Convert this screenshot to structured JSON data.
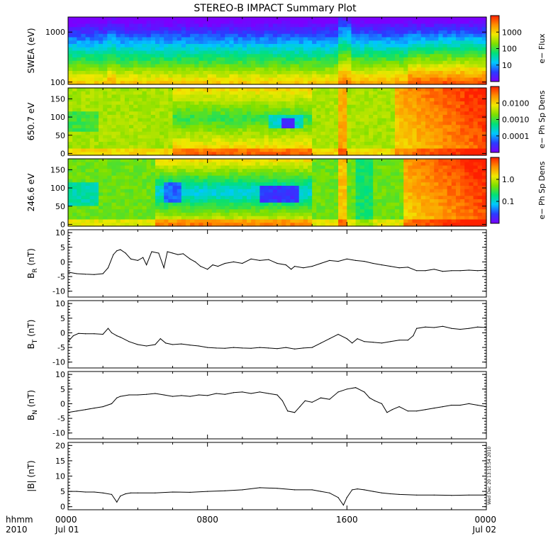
{
  "title": "STEREO-B IMPACT Summary Plot",
  "colormap": [
    "#7a00ff",
    "#2a3cff",
    "#00c8ff",
    "#00e07a",
    "#7ee000",
    "#f0e800",
    "#ff9000",
    "#ff2000"
  ],
  "x_axis": {
    "label_line1": "hhmm",
    "label_line2": "2010",
    "ticks": [
      {
        "time": "0000",
        "date": "Jul 01",
        "hour": 0
      },
      {
        "time": "0800",
        "date": "",
        "hour": 8
      },
      {
        "time": "1600",
        "date": "",
        "hour": 16
      },
      {
        "time": "0000",
        "date": "Jul 02",
        "hour": 24
      }
    ],
    "range_hours": [
      0,
      24
    ]
  },
  "side_label": "Wed Dec 20 13:15:54 2010",
  "chart_data": [
    {
      "type": "heatmap",
      "ylabel": "SWEA (eV)",
      "yscale": "log",
      "ylim": [
        90,
        2000
      ],
      "yticks": [
        "100",
        "1000"
      ],
      "ytick_values": [
        100,
        1000
      ],
      "colorbar": {
        "label": "e− Flux",
        "scale": "log",
        "ticks": [
          "10",
          "100",
          "1000"
        ]
      },
      "description_rows": {
        "low_energy_color_level_by_hour": [
          [
            0,
            0.75
          ],
          [
            2,
            0.72
          ],
          [
            3,
            0.6
          ],
          [
            8,
            0.62
          ],
          [
            14,
            0.65
          ],
          [
            15.5,
            0.8
          ],
          [
            16,
            0.7
          ],
          [
            19,
            0.82
          ],
          [
            20,
            0.95
          ],
          [
            24,
            0.95
          ]
        ]
      }
    },
    {
      "type": "heatmap",
      "ylabel": "650.7 eV",
      "ylim": [
        -5,
        180
      ],
      "yticks": [
        "0",
        "50",
        "100",
        "150"
      ],
      "ytick_values": [
        0,
        50,
        100,
        150
      ],
      "colorbar": {
        "label": "e− Ph Sp Dens",
        "scale": "log",
        "ticks": [
          "0.0001",
          "0.0010",
          "0.0100"
        ]
      }
    },
    {
      "type": "heatmap",
      "ylabel": "246.6 eV",
      "ylim": [
        -5,
        180
      ],
      "yticks": [
        "0",
        "50",
        "100",
        "150"
      ],
      "ytick_values": [
        0,
        50,
        100,
        150
      ],
      "colorbar": {
        "label": "e− Ph Sp Dens",
        "scale": "log",
        "ticks": [
          "0.1",
          "1.0"
        ]
      }
    },
    {
      "type": "line",
      "ylabel": "B",
      "ylabel_sub": "R",
      "ylabel_unit": "(nT)",
      "ylim": [
        -12,
        11
      ],
      "yticks": [
        "-10",
        "-5",
        "0",
        "5",
        "10"
      ],
      "ytick_values": [
        -10,
        -5,
        0,
        5,
        10
      ],
      "x": [
        0,
        0.5,
        1,
        1.5,
        2,
        2.3,
        2.6,
        2.8,
        3,
        3.3,
        3.6,
        4,
        4.3,
        4.5,
        4.8,
        5.2,
        5.5,
        5.7,
        6,
        6.3,
        6.6,
        7,
        7.3,
        7.6,
        8,
        8.3,
        8.6,
        9,
        9.5,
        10,
        10.5,
        11,
        11.5,
        12,
        12.5,
        12.8,
        13,
        13.5,
        14,
        14.5,
        15,
        15.5,
        16,
        16.5,
        17,
        17.5,
        18,
        18.5,
        19,
        19.5,
        20,
        20.5,
        21,
        21.5,
        22,
        22.5,
        23,
        23.5,
        24
      ],
      "values": [
        -3.5,
        -4,
        -4.2,
        -4.3,
        -4,
        -2,
        2.5,
        3.8,
        4.2,
        3,
        1,
        0.5,
        1.5,
        -1,
        3.5,
        3,
        -2,
        3.5,
        3,
        2.5,
        2.8,
        1,
        0,
        -1.5,
        -2.5,
        -1,
        -1.5,
        -0.5,
        0,
        -0.5,
        1,
        0.5,
        0.8,
        -0.5,
        -1,
        -2.5,
        -1.5,
        -2,
        -1.5,
        -0.5,
        0.5,
        0.2,
        1,
        0.5,
        0.2,
        -0.5,
        -1,
        -1.5,
        -2,
        -1.8,
        -3,
        -3,
        -2.5,
        -3.2,
        -3,
        -3,
        -2.8,
        -3,
        -2.8
      ]
    },
    {
      "type": "line",
      "ylabel": "B",
      "ylabel_sub": "T",
      "ylabel_unit": "(nT)",
      "ylim": [
        -12,
        11
      ],
      "yticks": [
        "-10",
        "-5",
        "0",
        "5",
        "10"
      ],
      "ytick_values": [
        -10,
        -5,
        0,
        5,
        10
      ],
      "x": [
        0,
        0.3,
        0.6,
        1,
        1.5,
        2,
        2.3,
        2.5,
        2.8,
        3,
        3.5,
        4,
        4.5,
        5,
        5.3,
        5.6,
        6,
        6.5,
        7,
        7.5,
        8,
        8.5,
        9,
        9.5,
        10,
        10.5,
        11,
        11.5,
        12,
        12.5,
        13,
        13.5,
        14,
        14.5,
        15,
        15.5,
        16,
        16.3,
        16.6,
        17,
        17.5,
        18,
        18.5,
        19,
        19.5,
        19.8,
        20,
        20.5,
        21,
        21.5,
        22,
        22.5,
        23,
        23.5,
        24
      ],
      "values": [
        -3,
        -1,
        -0.2,
        -0.3,
        -0.3,
        -0.5,
        1.5,
        0,
        -1,
        -1.5,
        -3,
        -4,
        -4.5,
        -4,
        -2,
        -3.5,
        -4,
        -3.8,
        -4.2,
        -4.5,
        -5,
        -5.2,
        -5.3,
        -5,
        -5.2,
        -5.3,
        -5,
        -5.2,
        -5.4,
        -5,
        -5.5,
        -5.2,
        -5,
        -3.5,
        -2,
        -0.5,
        -2,
        -3.5,
        -2,
        -3,
        -3.2,
        -3.5,
        -3,
        -2.5,
        -2.5,
        -1,
        1.5,
        2,
        1.8,
        2.2,
        1.5,
        1.2,
        1.5,
        2,
        1.8
      ]
    },
    {
      "type": "line",
      "ylabel": "B",
      "ylabel_sub": "N",
      "ylabel_unit": "(nT)",
      "ylim": [
        -12,
        11
      ],
      "yticks": [
        "-10",
        "-5",
        "0",
        "5",
        "10"
      ],
      "ytick_values": [
        -10,
        -5,
        0,
        5,
        10
      ],
      "x": [
        0,
        0.5,
        1,
        1.5,
        2,
        2.5,
        2.8,
        3,
        3.5,
        4,
        4.5,
        5,
        5.5,
        6,
        6.5,
        7,
        7.5,
        8,
        8.5,
        9,
        9.5,
        10,
        10.5,
        11,
        11.5,
        12,
        12.3,
        12.6,
        13,
        13.3,
        13.6,
        14,
        14.5,
        15,
        15.5,
        16,
        16.5,
        17,
        17.3,
        17.6,
        18,
        18.3,
        18.6,
        19,
        19.5,
        20,
        20.5,
        21,
        21.5,
        22,
        22.5,
        23,
        23.5,
        24
      ],
      "values": [
        -3,
        -2.5,
        -2,
        -1.5,
        -1,
        0,
        2,
        2.5,
        3,
        3,
        3.2,
        3.5,
        3,
        2.5,
        2.8,
        2.5,
        3,
        2.8,
        3.5,
        3.2,
        3.8,
        4,
        3.5,
        4,
        3.5,
        3,
        1,
        -2.5,
        -3,
        -1,
        1,
        0.5,
        2,
        1.5,
        4,
        5,
        5.5,
        4,
        2,
        1,
        0,
        -3,
        -2,
        -1,
        -2.5,
        -2.5,
        -2,
        -1.5,
        -1,
        -0.5,
        -0.5,
        0,
        -0.5,
        -1
      ]
    },
    {
      "type": "line",
      "ylabel": "|B|",
      "ylabel_unit": "(nT)",
      "ylim": [
        -1,
        21
      ],
      "yticks": [
        "0",
        "5",
        "10",
        "15",
        "20"
      ],
      "ytick_values": [
        0,
        5,
        10,
        15,
        20
      ],
      "x": [
        0,
        0.5,
        1,
        1.5,
        2,
        2.5,
        2.8,
        3,
        3.3,
        3.6,
        4,
        5,
        6,
        7,
        8,
        9,
        10,
        11,
        12,
        13,
        14,
        14.5,
        15,
        15.5,
        15.8,
        16,
        16.3,
        16.6,
        17,
        17.5,
        18,
        18.5,
        19,
        20,
        21,
        22,
        23,
        24
      ],
      "values": [
        5,
        5,
        4.8,
        4.8,
        4.5,
        4,
        1.5,
        3.5,
        4.2,
        4.5,
        4.5,
        4.5,
        4.8,
        4.7,
        5,
        5.2,
        5.5,
        6.2,
        6,
        5.5,
        5.5,
        5,
        4.5,
        3,
        0.5,
        3,
        5.5,
        5.8,
        5.5,
        5,
        4.5,
        4.2,
        4,
        3.8,
        3.8,
        3.7,
        3.8,
        3.8
      ]
    }
  ]
}
